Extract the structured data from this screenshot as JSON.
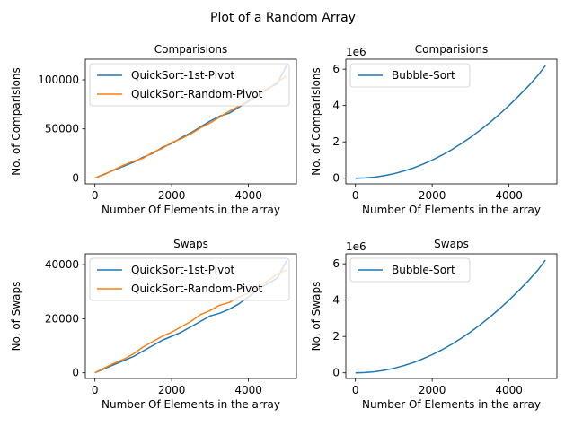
{
  "figure": {
    "title": "Plot of a Random Array"
  },
  "colors": {
    "series1": "#1f77b4",
    "series2": "#ff7f0e",
    "axis": "#000000",
    "legend_border": "#cccccc"
  },
  "chart_data": [
    {
      "id": "p1",
      "type": "line",
      "title": "Comparisions",
      "xlabel": "Number Of Elements in the array",
      "ylabel": "No. of Comparisions",
      "xlim": [
        -250,
        5250
      ],
      "ylim": [
        -6000,
        121000
      ],
      "xticks": [
        0,
        2000,
        4000
      ],
      "yticks": [
        0,
        50000,
        100000
      ],
      "offset_text": "",
      "legend": {
        "placement": "upper-left",
        "entries": [
          "QuickSort-1st-Pivot",
          "QuickSort-Random-Pivot"
        ]
      },
      "series": [
        {
          "name": "QuickSort-1st-Pivot",
          "x": [
            0,
            250,
            500,
            750,
            1000,
            1250,
            1500,
            1750,
            2000,
            2250,
            2500,
            2750,
            3000,
            3250,
            3500,
            3750,
            4000,
            4250,
            4500,
            4750,
            5000
          ],
          "y": [
            0,
            4000,
            8000,
            12000,
            16000,
            21000,
            25000,
            31000,
            35000,
            41000,
            46000,
            52000,
            58000,
            63000,
            66000,
            72000,
            78000,
            84000,
            91000,
            96000,
            115000
          ]
        },
        {
          "name": "QuickSort-Random-Pivot",
          "x": [
            0,
            250,
            500,
            750,
            1000,
            1250,
            1500,
            1750,
            2000,
            2250,
            2500,
            2750,
            3000,
            3250,
            3500,
            3750,
            4000,
            4250,
            4500,
            4750,
            5000
          ],
          "y": [
            0,
            3500,
            8500,
            13000,
            17000,
            20000,
            26000,
            30000,
            36000,
            40000,
            45000,
            51000,
            56000,
            62000,
            68000,
            73000,
            79000,
            85000,
            90000,
            98000,
            104000
          ]
        }
      ]
    },
    {
      "id": "p2",
      "type": "line",
      "title": "Comparisions",
      "xlabel": "Number Of Elements in the array",
      "ylabel": "No. of Comparisions",
      "xlim": [
        -250,
        5250
      ],
      "ylim": [
        -310000,
        6550000
      ],
      "xticks": [
        0,
        2000,
        4000
      ],
      "yticks": [
        0,
        2000000,
        4000000,
        6000000
      ],
      "ytick_labels": [
        "0",
        "2",
        "4",
        "6"
      ],
      "offset_text": "1e6",
      "legend": {
        "placement": "upper-left",
        "entries": [
          "Bubble-Sort"
        ]
      },
      "series": [
        {
          "name": "Bubble-Sort",
          "x": [
            0,
            250,
            500,
            750,
            1000,
            1250,
            1500,
            1750,
            2000,
            2250,
            2500,
            2750,
            3000,
            3250,
            3500,
            3750,
            4000,
            4250,
            4500,
            4750,
            4950
          ],
          "y": [
            0,
            15000,
            62000,
            140000,
            250000,
            390000,
            560000,
            765000,
            1000000,
            1265000,
            1560000,
            1890000,
            2250000,
            2640000,
            3060000,
            3515000,
            4000000,
            4515000,
            5060000,
            5640000,
            6200000
          ]
        }
      ]
    },
    {
      "id": "p3",
      "type": "line",
      "title": "Swaps",
      "xlabel": "Number Of Elements in the array",
      "ylabel": "No. of Swaps",
      "xlim": [
        -250,
        5250
      ],
      "ylim": [
        -2100,
        44000
      ],
      "xticks": [
        0,
        2000,
        4000
      ],
      "yticks": [
        0,
        20000,
        40000
      ],
      "offset_text": "",
      "legend": {
        "placement": "upper-left",
        "entries": [
          "QuickSort-1st-Pivot",
          "QuickSort-Random-Pivot"
        ]
      },
      "series": [
        {
          "name": "QuickSort-1st-Pivot",
          "x": [
            0,
            250,
            500,
            750,
            1000,
            1250,
            1500,
            1750,
            2000,
            2250,
            2500,
            2750,
            3000,
            3250,
            3500,
            3750,
            4000,
            4250,
            4500,
            4750,
            5000
          ],
          "y": [
            0,
            1500,
            3000,
            4500,
            6000,
            8000,
            10000,
            12000,
            13500,
            15000,
            17000,
            19000,
            21000,
            22000,
            23500,
            25500,
            28000,
            31000,
            33000,
            35000,
            41500
          ]
        },
        {
          "name": "QuickSort-Random-Pivot",
          "x": [
            0,
            250,
            500,
            750,
            1000,
            1250,
            1500,
            1750,
            2000,
            2250,
            2500,
            2750,
            3000,
            3250,
            3500,
            3750,
            4000,
            4250,
            4500,
            4750,
            5000
          ],
          "y": [
            0,
            1800,
            3500,
            5000,
            7000,
            9500,
            11500,
            13500,
            15000,
            17000,
            19000,
            21500,
            23000,
            25000,
            26000,
            28000,
            29500,
            32000,
            34000,
            36500,
            38000
          ]
        }
      ]
    },
    {
      "id": "p4",
      "type": "line",
      "title": "Swaps",
      "xlabel": "Number Of Elements in the array",
      "ylabel": "No. of Swaps",
      "xlim": [
        -250,
        5250
      ],
      "ylim": [
        -310000,
        6550000
      ],
      "xticks": [
        0,
        2000,
        4000
      ],
      "yticks": [
        0,
        2000000,
        4000000,
        6000000
      ],
      "ytick_labels": [
        "0",
        "2",
        "4",
        "6"
      ],
      "offset_text": "1e6",
      "legend": {
        "placement": "upper-left",
        "entries": [
          "Bubble-Sort"
        ]
      },
      "series": [
        {
          "name": "Bubble-Sort",
          "x": [
            0,
            250,
            500,
            750,
            1000,
            1250,
            1500,
            1750,
            2000,
            2250,
            2500,
            2750,
            3000,
            3250,
            3500,
            3750,
            4000,
            4250,
            4500,
            4750,
            4950
          ],
          "y": [
            0,
            15000,
            62000,
            140000,
            250000,
            390000,
            560000,
            765000,
            1000000,
            1265000,
            1560000,
            1890000,
            2250000,
            2640000,
            3060000,
            3515000,
            4000000,
            4515000,
            5060000,
            5640000,
            6200000
          ]
        }
      ]
    }
  ]
}
